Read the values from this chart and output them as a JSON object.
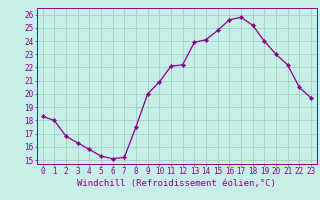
{
  "x": [
    0,
    1,
    2,
    3,
    4,
    5,
    6,
    7,
    8,
    9,
    10,
    11,
    12,
    13,
    14,
    15,
    16,
    17,
    18,
    19,
    20,
    21,
    22,
    23
  ],
  "y": [
    18.3,
    18.0,
    16.8,
    16.3,
    15.8,
    15.3,
    15.1,
    15.2,
    17.5,
    20.0,
    20.9,
    22.1,
    22.2,
    23.9,
    24.1,
    24.8,
    25.6,
    25.8,
    25.2,
    24.0,
    23.0,
    22.2,
    20.5,
    19.7
  ],
  "line_color": "#880088",
  "marker": "D",
  "marker_size": 2.2,
  "linewidth": 0.9,
  "xlabel": "Windchill (Refroidissement éolien,°C)",
  "xlabel_fontsize": 6.5,
  "ylabel_ticks": [
    15,
    16,
    17,
    18,
    19,
    20,
    21,
    22,
    23,
    24,
    25,
    26
  ],
  "xlim": [
    -0.5,
    23.5
  ],
  "ylim": [
    14.7,
    26.5
  ],
  "bg_color": "#c8eee8",
  "grid_color": "#9dcfca",
  "tick_fontsize": 5.5
}
